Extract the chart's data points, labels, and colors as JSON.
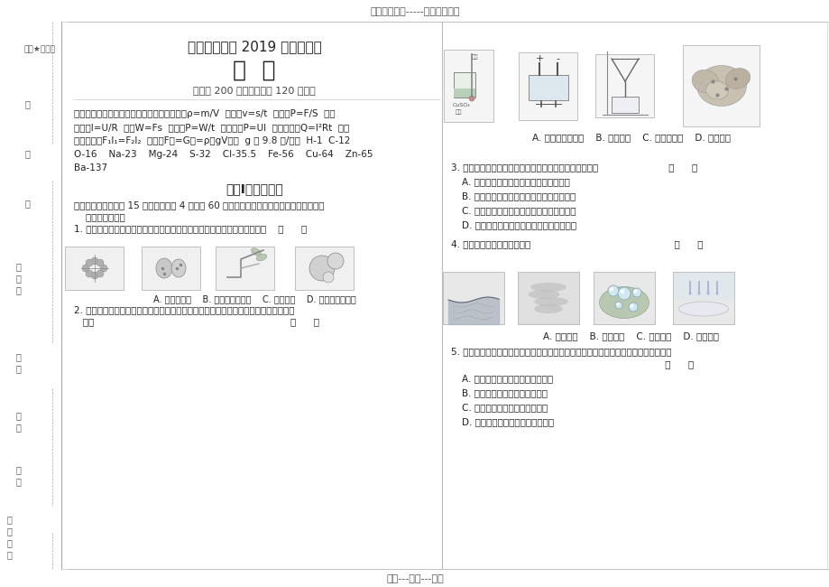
{
  "bg_color": "#ffffff",
  "text_color": "#222222",
  "gray_color": "#888888",
  "light_gray": "#cccccc",
  "top_banner": "精选优质文档-----倾情为你奉上",
  "bottom_banner": "专心---专注---专业",
  "secret_text": "绝密★启用前",
  "title_line1": "浙江省绍兴市 2019 年中考试卷",
  "title_line2": "科  学",
  "subtitle": "（满分 200 分，考试时间 120 分钟）",
  "formula_bold": "本卷可能用到的公式和相对原子质量：",
  "formula_line1": "本卷可能用到的公式和相对原子质量：密度：ρ=m/V  速度：v=s/t  压强：P=F/S  欧姆",
  "formula_line2": "定律：I=U/R  功：W=Fs  功率：P=W/t  电功率：P=UI  焦耳定律：Q=I²Rt  杠杆",
  "formula_line3": "平衡条件：F₁l₁=F₂l₂  浮力：F浮=G排=ρ液gV排液  g 取 9.8 牛/千克  H-1  C-12",
  "formula_line4": "O-16    Na-23    Mg-24    S-32    Cl-35.5    Fe-56    Cu-64    Zn-65",
  "formula_line5": "Ba-137",
  "section_title": "试卷Ⅰ（选择题）",
  "q1_header": "一、选择题（本题共 15 小题，每小题 4 分，共 60 分，在每小题给出的四个选项中，只有一",
  "q1_header2": "    项是符合题意）",
  "q1_text": "1. 生物的生殖使地球上的生命代代相传、繁衍不息。下列属于有性生殖的是    （      ）",
  "q1_captions": "A. 蚜虫的繁殖    B. 变形虫分裂生殖    C. 桃树嫁接    D. 酵母菌出芽生殖",
  "q2_line1": "2. 化学变化和物理变化的区别在于变化过程中有无新的物质生成。下列只发生物理变化",
  "q2_line2": "   的是                                                                   （      ）",
  "q2_captions": "A. 比较金属活动性    B. 水的电解    C. 过滤淀浆水    D. 食物霉变",
  "q3_text": "3. 地壳和地表形态都在不断的变化着，下列说法正确的是                        （      ）",
  "q3_opts": [
    "A. 地球岩石圈由大小相同的六大板块组成",
    "B. 火山和地震多发生在板块内部地壳稳定处",
    "C. 外力作用主要是使地球表面变得高低不平",
    "D. 板块的碰撞和张裂是海陆变化的主要原因"
  ],
  "q4_text": "4. 下列物态变化属于凝固的是                                                 （      ）",
  "q4_captions": "A. 湖水结冰    B. 雾气消散    C. 露珠形成    D. 冰雪消融",
  "q5_line1": "5. 流行性感冒是由流感病毒引起的传染病，它通过飞沫、空气传播。下列说法正确的是",
  "q5_line2": "                                                                         （      ）",
  "q5_opts": [
    "A. 流感病毒是流行性感冒的传染源",
    "B. 患流行性感冒的病人是病原体",
    "C. 流行性感冒是一种遗传性疾病",
    "D. 接种流感疫苗可以保护易感人群"
  ]
}
